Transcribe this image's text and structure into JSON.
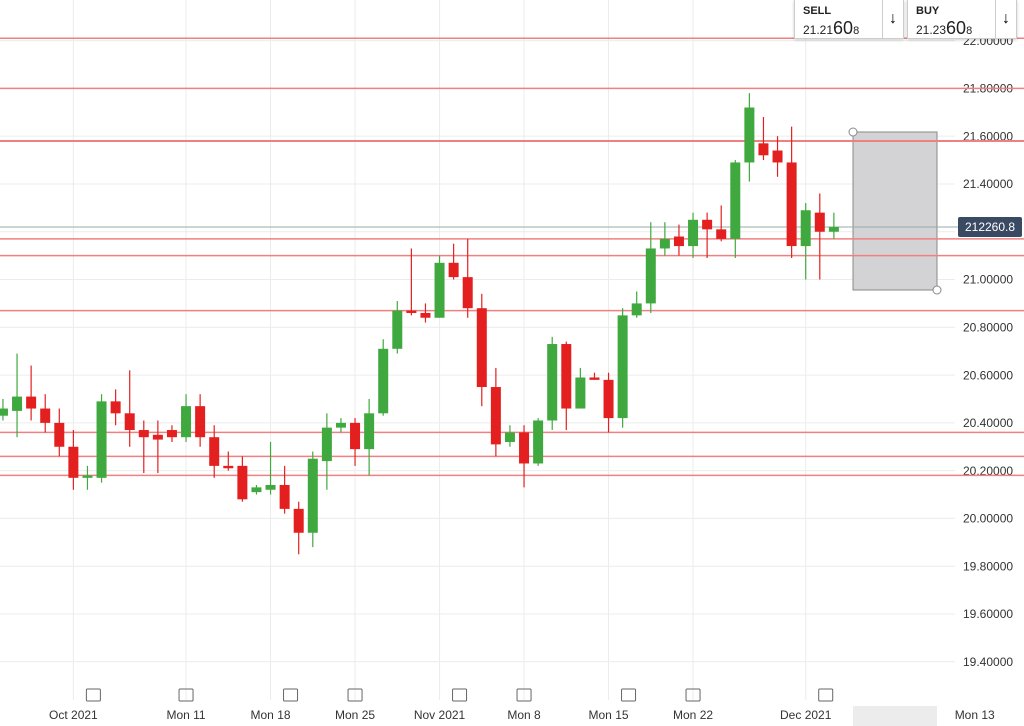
{
  "chart_data": {
    "type": "candlestick",
    "up_color": "#3fa93f",
    "down_color": "#e3201f",
    "xlim": [
      -0.21,
      72.5
    ],
    "ylim": [
      19.24,
      22.17
    ],
    "xticks": [
      {
        "value": 5,
        "label": "Oct 2021"
      },
      {
        "value": 13,
        "label": "Mon 11"
      },
      {
        "value": 19,
        "label": "Mon 18"
      },
      {
        "value": 25,
        "label": "Mon 25"
      },
      {
        "value": 31,
        "label": "Nov 2021"
      },
      {
        "value": 37,
        "label": "Mon 8"
      },
      {
        "value": 43,
        "label": "Mon 15"
      },
      {
        "value": 49,
        "label": "Mon 22"
      },
      {
        "value": 57,
        "label": "Dec 2021"
      },
      {
        "value": 69,
        "label": "Mon 13"
      }
    ],
    "yticks": [
      {
        "value": 19.4,
        "label": "19.40000"
      },
      {
        "value": 19.6,
        "label": "19.60000"
      },
      {
        "value": 19.8,
        "label": "19.80000"
      },
      {
        "value": 20.0,
        "label": "20.00000"
      },
      {
        "value": 20.2,
        "label": "20.20000"
      },
      {
        "value": 20.4,
        "label": "20.40000"
      },
      {
        "value": 20.6,
        "label": "20.60000"
      },
      {
        "value": 20.8,
        "label": "20.80000"
      },
      {
        "value": 21.0,
        "label": "21.00000"
      },
      {
        "value": 21.2,
        "label": "21.20000"
      },
      {
        "value": 21.4,
        "label": "21.40000"
      },
      {
        "value": 21.6,
        "label": "21.60000"
      },
      {
        "value": 21.8,
        "label": "21.80000"
      },
      {
        "value": 22.0,
        "label": "22.00000"
      }
    ],
    "x": [
      0,
      1,
      2,
      3,
      4,
      5,
      6,
      7,
      8,
      9,
      10,
      11,
      12,
      13,
      14,
      15,
      16,
      17,
      18,
      19,
      20,
      21,
      22,
      23,
      24,
      25,
      26,
      27,
      28,
      29,
      30,
      31,
      32,
      33,
      34,
      35,
      36,
      37,
      38,
      39,
      40,
      41,
      42,
      43,
      44,
      45,
      46,
      47,
      48,
      49,
      50,
      51,
      52,
      53,
      54,
      55,
      56,
      57,
      58,
      59
    ],
    "open": [
      20.43,
      20.45,
      20.51,
      20.46,
      20.4,
      20.3,
      20.17,
      20.17,
      20.49,
      20.44,
      20.37,
      20.35,
      20.37,
      20.34,
      20.47,
      20.34,
      20.22,
      20.22,
      20.11,
      20.12,
      20.14,
      20.04,
      19.94,
      20.24,
      20.38,
      20.4,
      20.29,
      20.44,
      20.71,
      20.87,
      20.86,
      20.84,
      21.07,
      21.01,
      20.88,
      20.55,
      20.32,
      20.36,
      20.23,
      20.41,
      20.73,
      20.46,
      20.59,
      20.58,
      20.42,
      20.85,
      20.9,
      21.13,
      21.18,
      21.14,
      21.25,
      21.21,
      21.17,
      21.49,
      21.57,
      21.54,
      21.49,
      21.14,
      21.28,
      21.2
    ],
    "high": [
      20.5,
      20.69,
      20.64,
      20.52,
      20.46,
      20.37,
      20.22,
      20.52,
      20.54,
      20.62,
      20.41,
      20.41,
      20.39,
      20.52,
      20.52,
      20.39,
      20.28,
      20.26,
      20.14,
      20.32,
      20.22,
      20.07,
      20.28,
      20.44,
      20.42,
      20.42,
      20.5,
      20.75,
      20.91,
      21.13,
      20.9,
      21.1,
      21.15,
      21.17,
      20.94,
      20.63,
      20.39,
      20.39,
      20.42,
      20.76,
      20.74,
      20.63,
      20.61,
      20.61,
      20.88,
      20.95,
      21.24,
      21.24,
      21.23,
      21.28,
      21.28,
      21.31,
      21.5,
      21.78,
      21.68,
      21.6,
      21.64,
      21.32,
      21.36,
      21.28
    ],
    "low": [
      20.41,
      20.34,
      20.41,
      20.36,
      20.26,
      20.12,
      20.12,
      20.15,
      20.39,
      20.3,
      20.19,
      20.19,
      20.32,
      20.32,
      20.3,
      20.17,
      20.2,
      20.07,
      20.1,
      20.1,
      20.02,
      19.85,
      19.88,
      20.12,
      20.36,
      20.22,
      20.18,
      20.43,
      20.69,
      20.85,
      20.82,
      20.84,
      21.0,
      20.84,
      20.47,
      20.26,
      20.3,
      20.13,
      20.22,
      20.37,
      20.37,
      20.46,
      20.58,
      20.36,
      20.38,
      20.84,
      20.86,
      21.1,
      21.1,
      21.09,
      21.09,
      21.16,
      21.09,
      21.41,
      21.5,
      21.43,
      21.09,
      21.0,
      21.0,
      21.17
    ],
    "close": [
      20.46,
      20.51,
      20.46,
      20.4,
      20.3,
      20.17,
      20.18,
      20.49,
      20.44,
      20.37,
      20.34,
      20.33,
      20.34,
      20.47,
      20.34,
      20.22,
      20.21,
      20.08,
      20.13,
      20.14,
      20.04,
      19.94,
      20.25,
      20.38,
      20.4,
      20.29,
      20.44,
      20.71,
      20.87,
      20.86,
      20.84,
      21.07,
      21.01,
      20.88,
      20.55,
      20.31,
      20.36,
      20.23,
      20.41,
      20.73,
      20.46,
      20.59,
      20.58,
      20.42,
      20.85,
      20.9,
      21.13,
      21.17,
      21.14,
      21.25,
      21.21,
      21.17,
      21.49,
      21.72,
      21.52,
      21.49,
      21.14,
      21.29,
      21.2,
      21.22
    ],
    "levels": [
      22.01,
      21.8,
      21.58,
      21.17,
      21.1,
      20.87,
      20.36,
      20.26,
      20.18
    ],
    "level_color": "#f08080",
    "price_line": 21.22,
    "price_tag": "212260.8",
    "sell": {
      "label": "SELL",
      "big": "21.21",
      "pips": "60",
      "tail": "8"
    },
    "buy": {
      "label": "BUY",
      "big": "21.23",
      "pips": "60",
      "tail": "8"
    }
  }
}
